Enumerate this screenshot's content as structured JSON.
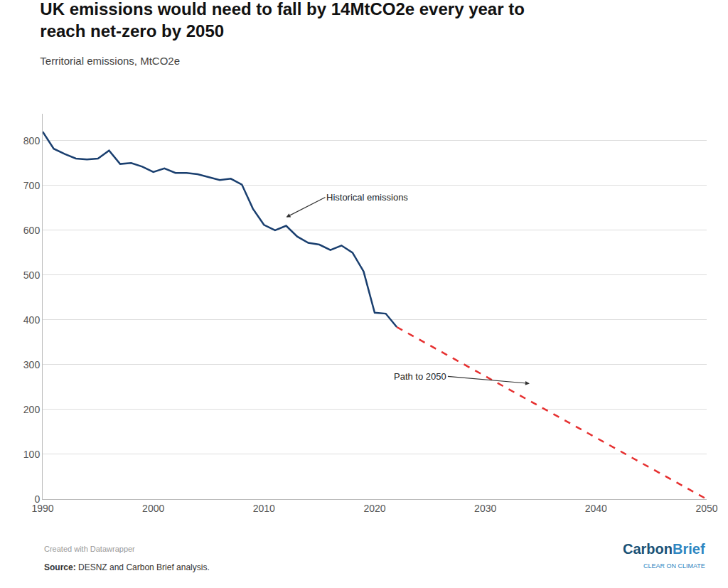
{
  "chart_data": {
    "type": "line",
    "title": "UK emissions would need to fall by 14MtCO2e every year to reach net-zero by 2050",
    "subtitle": "Territorial emissions, MtCO2e",
    "series": [
      {
        "name": "Historical emissions",
        "color": "#1a3f6f",
        "line_style": "solid",
        "x": [
          1990,
          1991,
          1992,
          1993,
          1994,
          1995,
          1996,
          1997,
          1998,
          1999,
          2000,
          2001,
          2002,
          2003,
          2004,
          2005,
          2006,
          2007,
          2008,
          2009,
          2010,
          2011,
          2012,
          2013,
          2014,
          2015,
          2016,
          2017,
          2018,
          2019,
          2020,
          2021,
          2022
        ],
        "values": [
          820,
          782,
          770,
          760,
          758,
          760,
          778,
          748,
          750,
          742,
          730,
          738,
          728,
          728,
          725,
          718,
          712,
          715,
          702,
          648,
          612,
          600,
          610,
          586,
          572,
          568,
          556,
          566,
          550,
          508,
          416,
          414,
          384
        ]
      },
      {
        "name": "Path to 2050",
        "color": "#e63030",
        "line_style": "dashed",
        "x": [
          2022,
          2050
        ],
        "values": [
          384,
          0
        ]
      }
    ],
    "xlim": [
      1990,
      2050
    ],
    "xticks": [
      1990,
      2000,
      2010,
      2020,
      2030,
      2040,
      2050
    ],
    "ylim": [
      0,
      860
    ],
    "yticks": [
      0,
      100,
      200,
      300,
      400,
      500,
      600,
      700,
      800
    ],
    "grid": true,
    "annotations": [
      {
        "text": "Historical emissions",
        "x": 2012.0,
        "y": 629.0
      },
      {
        "text": "Path to 2050",
        "x": 2034.0,
        "y": 258.0
      }
    ],
    "credit": "Created with Datawrapper",
    "source": "Source: DESNZ and Carbon Brief analysis.",
    "logo": [
      {
        "text": "Carbon",
        "color": "#1a5276"
      },
      {
        "text": "Brief",
        "color": "#2e86c1"
      },
      {
        "text": "CLEAR ON CLIMATE",
        "color": "#2e86c1"
      }
    ]
  }
}
